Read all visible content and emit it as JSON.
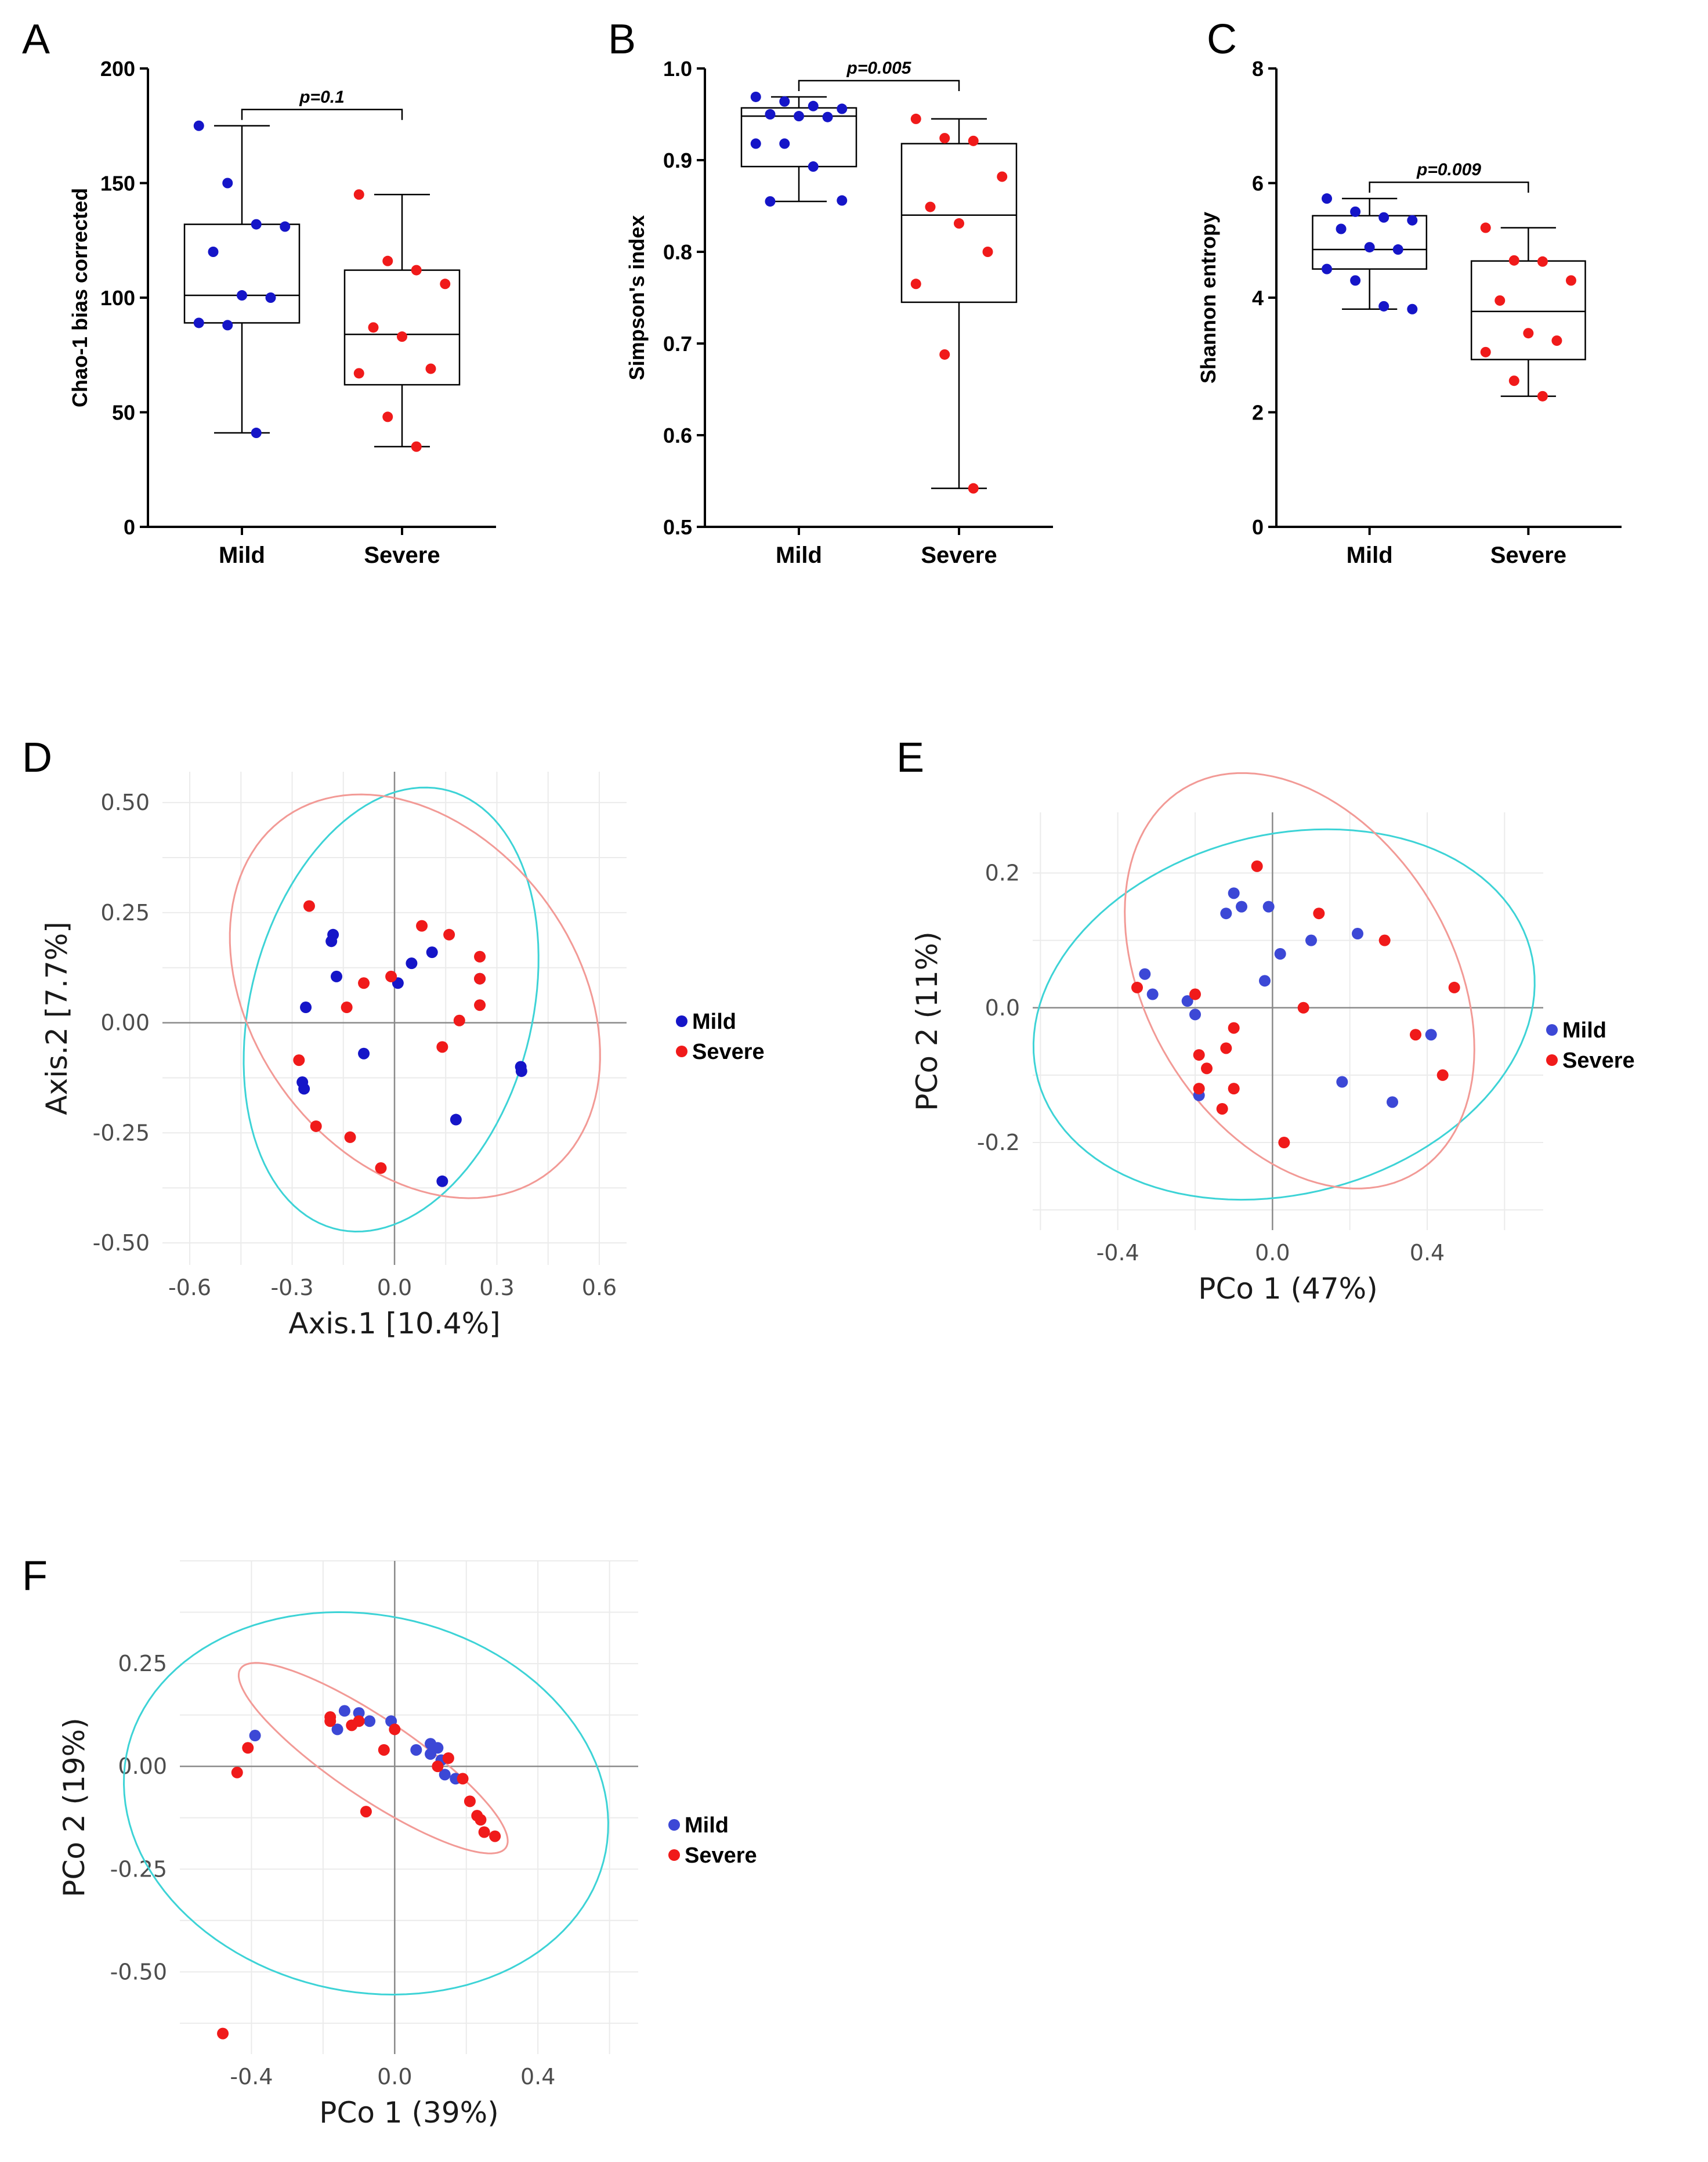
{
  "colors": {
    "mild": "#1515c8",
    "severe": "#f01a1a",
    "mild_pcoa": "#3c48d6",
    "ellipse_mild": "#3dd3d6",
    "ellipse_severe": "#f29a96",
    "grid": "#ebebeb",
    "zero_line": "#8a8a8a"
  },
  "chart_data": [
    {
      "id": "A",
      "type": "box",
      "panel_label": "A",
      "ylabel": "Chao-1 bias corrected",
      "ylim": [
        0,
        200
      ],
      "yticks": [
        0,
        50,
        100,
        150,
        200
      ],
      "categories": [
        "Mild",
        "Severe"
      ],
      "boxes": [
        {
          "min": 41,
          "q1": 89,
          "median": 101,
          "q3": 132,
          "max": 175
        },
        {
          "min": 35,
          "q1": 62,
          "median": 84,
          "q3": 112,
          "max": 145
        }
      ],
      "points": [
        [
          175,
          150,
          132,
          131,
          120,
          101,
          100,
          89,
          88,
          41
        ],
        [
          145,
          116,
          112,
          106,
          87,
          83,
          69,
          67,
          48,
          35
        ]
      ],
      "pvalue": "p=0.1"
    },
    {
      "id": "B",
      "type": "box",
      "panel_label": "B",
      "ylabel": "Simpson's  index",
      "ylim": [
        0.5,
        1.0
      ],
      "yticks": [
        "0.5",
        "0.6",
        "0.7",
        "0.8",
        "0.9",
        "1.0"
      ],
      "categories": [
        "Mild",
        "Severe"
      ],
      "boxes": [
        {
          "min": 0.855,
          "q1": 0.893,
          "median": 0.948,
          "q3": 0.957,
          "max": 0.969
        },
        {
          "min": 0.542,
          "q1": 0.745,
          "median": 0.84,
          "q3": 0.918,
          "max": 0.945
        }
      ],
      "points": [
        [
          0.969,
          0.964,
          0.959,
          0.956,
          0.95,
          0.948,
          0.947,
          0.918,
          0.918,
          0.893,
          0.856,
          0.855
        ],
        [
          0.945,
          0.924,
          0.921,
          0.882,
          0.849,
          0.831,
          0.8,
          0.765,
          0.688,
          0.542
        ]
      ],
      "pvalue": "p=0.005"
    },
    {
      "id": "C",
      "type": "box",
      "panel_label": "C",
      "ylabel": "Shannon entropy",
      "ylim": [
        0,
        8
      ],
      "yticks": [
        0,
        2,
        4,
        6,
        8
      ],
      "categories": [
        "Mild",
        "Severe"
      ],
      "boxes": [
        {
          "min": 3.8,
          "q1": 4.5,
          "median": 4.84,
          "q3": 5.43,
          "max": 5.73
        },
        {
          "min": 2.28,
          "q1": 2.92,
          "median": 3.76,
          "q3": 4.64,
          "max": 5.22
        }
      ],
      "points": [
        [
          5.73,
          5.5,
          5.4,
          5.35,
          5.2,
          4.88,
          4.84,
          4.5,
          4.3,
          3.85,
          3.8
        ],
        [
          5.22,
          4.65,
          4.63,
          4.3,
          3.95,
          3.38,
          3.25,
          3.05,
          2.55,
          2.28
        ]
      ],
      "pvalue": "p=0.009"
    },
    {
      "id": "D",
      "type": "scatter",
      "panel_label": "D",
      "xlabel": "Axis.1   [10.4%]",
      "ylabel": "Axis.2   [7.7%]",
      "xlim": [
        -0.68,
        0.68
      ],
      "ylim": [
        -0.55,
        0.57
      ],
      "xticks": [
        "-0.6",
        "-0.3",
        "0.0",
        "0.3",
        "0.6"
      ],
      "yticks": [
        "-0.50",
        "-0.25",
        "0.00",
        "0.25",
        "0.50"
      ],
      "legend": [
        "Mild",
        "Severe"
      ],
      "series": [
        {
          "name": "Mild",
          "points": [
            [
              -0.18,
              0.2
            ],
            [
              -0.185,
              0.185
            ],
            [
              -0.17,
              0.105
            ],
            [
              -0.26,
              0.035
            ],
            [
              -0.27,
              -0.135
            ],
            [
              -0.265,
              -0.15
            ],
            [
              -0.09,
              -0.07
            ],
            [
              0.01,
              0.09
            ],
            [
              0.05,
              0.135
            ],
            [
              0.11,
              0.16
            ],
            [
              0.25,
              0.1
            ],
            [
              0.37,
              -0.1
            ],
            [
              0.372,
              -0.11
            ],
            [
              0.18,
              -0.22
            ],
            [
              0.14,
              -0.36
            ]
          ]
        },
        {
          "name": "Severe",
          "points": [
            [
              -0.25,
              0.265
            ],
            [
              -0.09,
              0.09
            ],
            [
              -0.14,
              0.035
            ],
            [
              -0.28,
              -0.085
            ],
            [
              -0.23,
              -0.235
            ],
            [
              -0.13,
              -0.26
            ],
            [
              -0.04,
              -0.33
            ],
            [
              -0.01,
              0.105
            ],
            [
              0.08,
              0.22
            ],
            [
              0.16,
              0.2
            ],
            [
              0.25,
              0.15
            ],
            [
              0.25,
              0.1
            ],
            [
              0.25,
              0.04
            ],
            [
              0.19,
              0.005
            ],
            [
              0.14,
              -0.055
            ]
          ]
        }
      ],
      "ellipses": [
        {
          "group": "Mild",
          "cx": -0.01,
          "cy": 0.03,
          "a": 0.53,
          "b": 0.4,
          "angle_deg": 62
        },
        {
          "group": "Severe",
          "cx": 0.06,
          "cy": 0.06,
          "a": 0.58,
          "b": 0.41,
          "angle_deg": -30
        }
      ]
    },
    {
      "id": "E",
      "type": "scatter",
      "panel_label": "E",
      "xlabel": "PCo 1 (47%)",
      "ylabel": "PCo 2 (11%)",
      "xlim": [
        -0.62,
        0.7
      ],
      "ylim": [
        -0.33,
        0.29
      ],
      "xticks": [
        "-0.4",
        "0.0",
        "0.4"
      ],
      "yticks": [
        "-0.2",
        "0.0",
        "0.2"
      ],
      "legend": [
        "Mild",
        "Severe"
      ],
      "series": [
        {
          "name": "Mild",
          "points": [
            [
              -0.33,
              0.05
            ],
            [
              -0.31,
              0.02
            ],
            [
              -0.22,
              0.01
            ],
            [
              -0.2,
              -0.01
            ],
            [
              -0.12,
              0.14
            ],
            [
              -0.1,
              0.17
            ],
            [
              -0.08,
              0.15
            ],
            [
              -0.01,
              0.15
            ],
            [
              0.02,
              0.08
            ],
            [
              0.1,
              0.1
            ],
            [
              0.22,
              0.11
            ],
            [
              -0.02,
              0.04
            ],
            [
              0.41,
              -0.04
            ],
            [
              0.18,
              -0.11
            ],
            [
              0.31,
              -0.14
            ],
            [
              -0.19,
              -0.13
            ]
          ]
        },
        {
          "name": "Severe",
          "points": [
            [
              -0.35,
              0.03
            ],
            [
              -0.2,
              0.02
            ],
            [
              -0.04,
              0.21
            ],
            [
              0.12,
              0.14
            ],
            [
              0.29,
              0.1
            ],
            [
              0.47,
              0.03
            ],
            [
              0.08,
              0.0
            ],
            [
              -0.1,
              -0.03
            ],
            [
              -0.19,
              -0.07
            ],
            [
              -0.12,
              -0.06
            ],
            [
              -0.17,
              -0.09
            ],
            [
              -0.1,
              -0.12
            ],
            [
              -0.19,
              -0.12
            ],
            [
              -0.13,
              -0.15
            ],
            [
              0.03,
              -0.2
            ],
            [
              0.37,
              -0.04
            ],
            [
              0.44,
              -0.1
            ]
          ]
        }
      ],
      "ellipses": [
        {
          "group": "Mild",
          "cx": 0.03,
          "cy": -0.01,
          "a": 0.65,
          "b": 0.27,
          "angle_deg": 5
        },
        {
          "group": "Severe",
          "cx": 0.07,
          "cy": 0.04,
          "a": 0.47,
          "b": 0.28,
          "angle_deg": -20
        }
      ]
    },
    {
      "id": "F",
      "type": "scatter",
      "panel_label": "F",
      "xlabel": "PCo 1 (39%)",
      "ylabel": "PCo 2 (19%)",
      "xlim": [
        -0.6,
        0.68
      ],
      "ylim": [
        -0.7,
        0.5
      ],
      "xticks": [
        "-0.4",
        "0.0",
        "0.4"
      ],
      "yticks": [
        "-0.50",
        "-0.25",
        "0.00",
        "0.25"
      ],
      "legend": [
        "Mild",
        "Severe"
      ],
      "series": [
        {
          "name": "Mild",
          "points": [
            [
              -0.39,
              0.075
            ],
            [
              -0.16,
              0.09
            ],
            [
              -0.14,
              0.135
            ],
            [
              -0.1,
              0.13
            ],
            [
              -0.07,
              0.11
            ],
            [
              -0.01,
              0.11
            ],
            [
              0.06,
              0.04
            ],
            [
              0.1,
              0.055
            ],
            [
              0.12,
              0.045
            ],
            [
              0.1,
              0.03
            ],
            [
              0.13,
              0.015
            ],
            [
              0.14,
              -0.02
            ],
            [
              0.17,
              -0.03
            ]
          ]
        },
        {
          "name": "Severe",
          "points": [
            [
              -0.41,
              0.045
            ],
            [
              -0.44,
              -0.015
            ],
            [
              -0.48,
              -0.65
            ],
            [
              -0.18,
              0.11
            ],
            [
              -0.18,
              0.12
            ],
            [
              -0.12,
              0.1
            ],
            [
              -0.1,
              0.11
            ],
            [
              -0.08,
              -0.11
            ],
            [
              -0.03,
              0.04
            ],
            [
              0.0,
              0.09
            ],
            [
              0.12,
              0.0
            ],
            [
              0.15,
              0.02
            ],
            [
              0.19,
              -0.03
            ],
            [
              0.21,
              -0.085
            ],
            [
              0.23,
              -0.12
            ],
            [
              0.24,
              -0.13
            ],
            [
              0.25,
              -0.16
            ],
            [
              0.28,
              -0.17
            ]
          ]
        }
      ],
      "ellipses": [
        {
          "group": "Mild",
          "cx": -0.08,
          "cy": -0.09,
          "a": 0.68,
          "b": 0.46,
          "angle_deg": -8
        },
        {
          "group": "Severe",
          "cx": -0.06,
          "cy": 0.02,
          "a": 0.43,
          "b": 0.1,
          "angle_deg": -30
        }
      ]
    }
  ]
}
